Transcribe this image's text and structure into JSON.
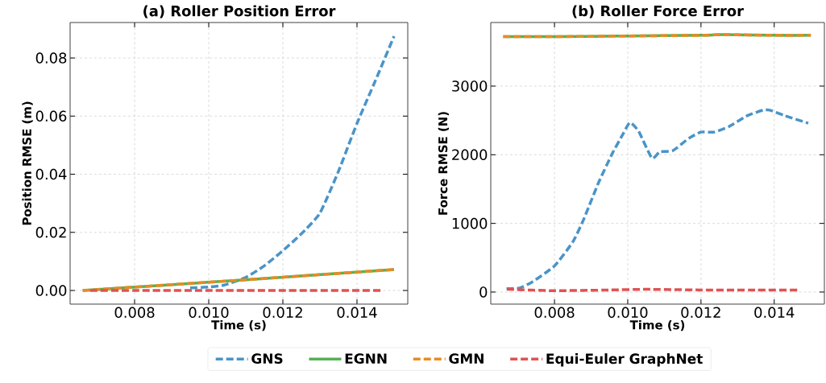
{
  "chart_data": [
    {
      "type": "line",
      "title": "(a) Roller Position Error",
      "xlabel": "Time (s)",
      "ylabel": "Position RMSE (m)",
      "xlim": [
        0.00626,
        0.01537
      ],
      "ylim": [
        -0.0047,
        0.0922
      ],
      "xticks": [
        0.008,
        {
          "value": 0.01,
          "label": "0.010"
        },
        0.012,
        0.014
      ],
      "yticks": [
        {
          "value": 0,
          "label": "0.00"
        },
        {
          "value": 0.02,
          "label": "0.02"
        },
        {
          "value": 0.04,
          "label": "0.04"
        },
        {
          "value": 0.06,
          "label": "0.06"
        },
        {
          "value": 0.08,
          "label": "0.08"
        }
      ],
      "grid": true,
      "legend": "bottom",
      "series": [
        {
          "name": "GNS",
          "color": "#4a94c8",
          "line_style": "dashed",
          "x": [
            0.0095,
            0.01,
            0.0104,
            0.011,
            0.0115,
            0.012,
            0.0125,
            0.013,
            0.0135,
            0.014,
            0.0145,
            0.015
          ],
          "values": [
            0.0009,
            0.0012,
            0.0018,
            0.0045,
            0.0085,
            0.0137,
            0.0195,
            0.0266,
            0.041,
            0.0575,
            0.0723,
            0.0875
          ]
        },
        {
          "name": "EGNN",
          "color": "#55b155",
          "line_style": "solid",
          "x": [
            0.0066,
            0.011,
            0.015
          ],
          "values": [
            0,
            0.0037,
            0.0072
          ]
        },
        {
          "name": "GMN",
          "color": "#e88b22",
          "line_style": "dashed",
          "x": [
            0.0066,
            0.011,
            0.015
          ],
          "values": [
            0,
            0.0037,
            0.0072
          ]
        },
        {
          "name": "Equi-Euler GraphNet",
          "color": "#e05252",
          "line_style": "dashed",
          "x": [
            0.0068,
            0.008,
            0.01,
            0.012,
            0.0147
          ],
          "values": [
            0,
            0,
            0,
            0,
            0
          ]
        }
      ]
    },
    {
      "type": "line",
      "title": "(b) Roller Force Error",
      "xlabel": "Time (s)",
      "ylabel": "Force RMSE (N)",
      "xlim": [
        0.00626,
        0.01537
      ],
      "ylim": [
        -176,
        3926
      ],
      "xticks": [
        0.008,
        {
          "value": 0.01,
          "label": "0.010"
        },
        0.012,
        0.014
      ],
      "yticks": [
        0,
        1000,
        2000,
        3000
      ],
      "grid": true,
      "series": [
        {
          "color": "#4a94c8",
          "line_style": "dashed",
          "x": [
            0.00669,
            0.00705,
            0.0074,
            0.008,
            0.0085,
            0.00879,
            0.0092,
            0.00958,
            0.00987,
            0.01006,
            0.0103,
            0.01066,
            0.01087,
            0.01123,
            0.01167,
            0.012,
            0.01236,
            0.01276,
            0.01327,
            0.0137,
            0.01388,
            0.01428,
            0.01493
          ],
          "values": [
            50,
            60,
            150,
            380,
            730,
            1050,
            1590,
            2020,
            2300,
            2470,
            2340,
            1950,
            2040,
            2060,
            2240,
            2330,
            2330,
            2410,
            2570,
            2650,
            2650,
            2570,
            2460
          ]
        },
        {
          "color": "#55b155",
          "line_style": "solid",
          "x": [
            0.0066,
            0.008,
            0.01,
            0.012,
            0.0126,
            0.014,
            0.015
          ],
          "values": [
            3720,
            3720,
            3730,
            3740,
            3750,
            3740,
            3740
          ]
        },
        {
          "color": "#e88b22",
          "line_style": "dashed",
          "x": [
            0.0066,
            0.008,
            0.01,
            0.012,
            0.0126,
            0.014,
            0.015
          ],
          "values": [
            3720,
            3720,
            3730,
            3740,
            3750,
            3740,
            3740
          ]
        },
        {
          "color": "#e05252",
          "line_style": "dashed",
          "x": [
            0.0067,
            0.008,
            0.0095,
            0.0105,
            0.012,
            0.0135,
            0.0147
          ],
          "values": [
            40,
            20,
            30,
            40,
            30,
            30,
            30
          ]
        }
      ]
    }
  ]
}
